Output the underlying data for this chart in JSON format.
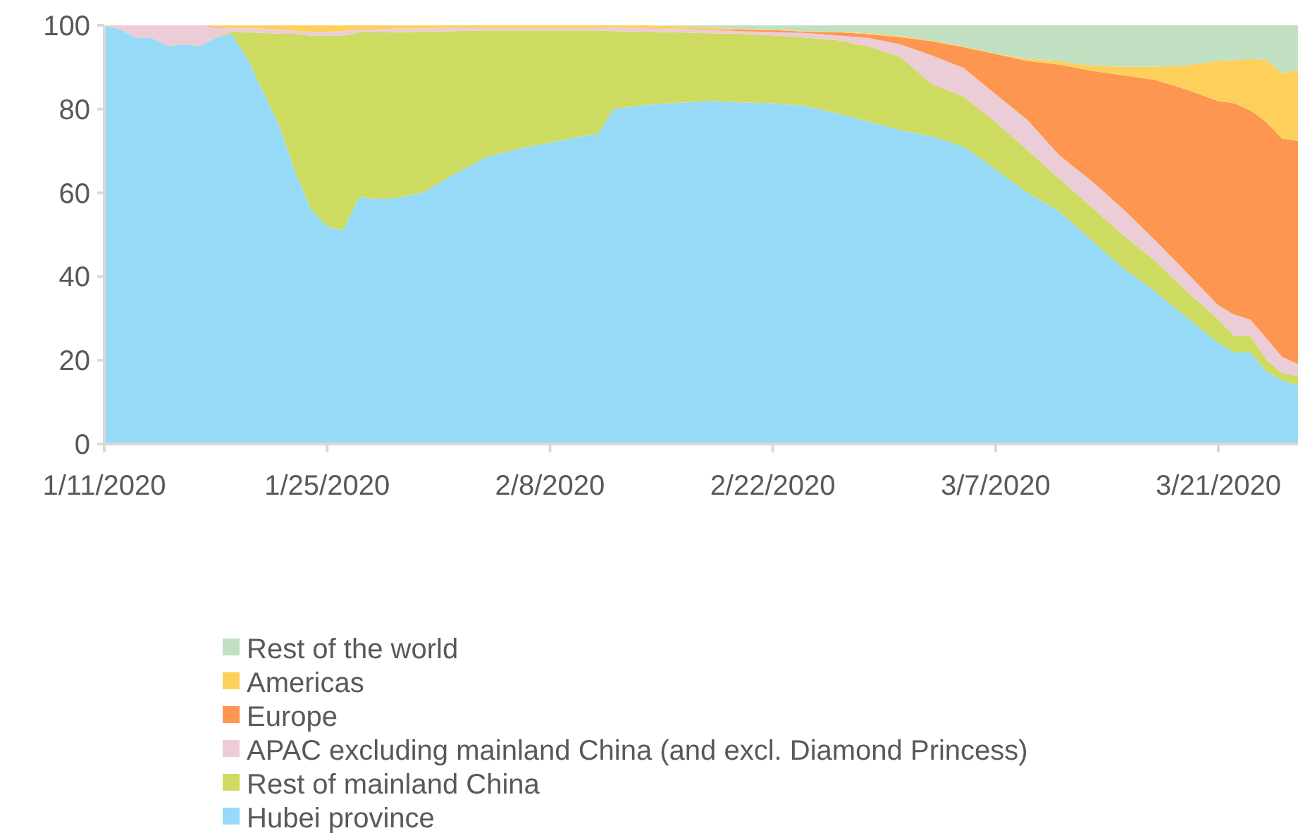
{
  "chart_data": {
    "type": "area",
    "stacked": true,
    "x": [
      "2020-01-11",
      "2020-01-12",
      "2020-01-13",
      "2020-01-14",
      "2020-01-15",
      "2020-01-16",
      "2020-01-17",
      "2020-01-18",
      "2020-01-19",
      "2020-01-20",
      "2020-01-21",
      "2020-01-22",
      "2020-01-23",
      "2020-01-24",
      "2020-01-25",
      "2020-01-26",
      "2020-01-27",
      "2020-01-28",
      "2020-01-29",
      "2020-01-31",
      "2020-02-02",
      "2020-02-04",
      "2020-02-06",
      "2020-02-08",
      "2020-02-10",
      "2020-02-11",
      "2020-02-12",
      "2020-02-14",
      "2020-02-16",
      "2020-02-18",
      "2020-02-20",
      "2020-02-22",
      "2020-02-24",
      "2020-02-26",
      "2020-02-28",
      "2020-03-01",
      "2020-03-03",
      "2020-03-05",
      "2020-03-07",
      "2020-03-09",
      "2020-03-11",
      "2020-03-13",
      "2020-03-15",
      "2020-03-17",
      "2020-03-19",
      "2020-03-21",
      "2020-03-22",
      "2020-03-23",
      "2020-03-24",
      "2020-03-25",
      "2020-03-26"
    ],
    "series": [
      {
        "name": "Hubei province",
        "color": "#97daf7",
        "values": [
          100,
          99,
          97,
          97,
          95,
          95.5,
          95,
          97,
          98,
          92,
          84,
          76,
          65,
          56,
          52,
          51,
          59,
          58.6,
          58.6,
          60,
          64.5,
          68.5,
          70.5,
          72,
          73.5,
          74,
          80,
          81,
          81.5,
          82,
          81.6,
          81.4,
          80.8,
          79,
          77,
          75,
          73.5,
          71,
          65.6,
          60,
          55.6,
          48.8,
          42.1,
          36.5,
          30.3,
          24.1,
          21.9,
          21.9,
          17.4,
          15.2,
          14
        ]
      },
      {
        "name": "Rest of mainland China",
        "color": "#cddc61",
        "values": [
          0,
          0,
          0,
          0,
          0,
          0,
          0,
          0,
          0.5,
          6.3,
          14.2,
          22,
          33,
          41.5,
          45.5,
          46.5,
          39.3,
          39.7,
          39.7,
          38.5,
          34.1,
          30.3,
          28.3,
          26.8,
          25.3,
          24.8,
          18.6,
          17.5,
          16.8,
          16.1,
          16.4,
          16.2,
          16.3,
          17.5,
          18,
          17.5,
          12.5,
          12,
          11.3,
          10.2,
          7.8,
          7.9,
          7.9,
          7.3,
          6.2,
          5.6,
          3.9,
          3.9,
          2.8,
          1.7,
          2.3
        ]
      },
      {
        "name": "APAC excluding mainland China (and excl. Diamond Princess)",
        "color": "#ecccd6",
        "values": [
          0,
          1,
          3,
          3,
          5,
          4.5,
          5,
          2.5,
          0.8,
          1,
          1,
          1,
          0.7,
          1,
          1,
          1.1,
          0.7,
          0.7,
          0.9,
          0.8,
          0.8,
          0.6,
          0.6,
          0.6,
          0.6,
          0.6,
          0.8,
          0.8,
          0.9,
          0.9,
          0.6,
          0.8,
          1.1,
          1.1,
          2,
          3,
          6.8,
          6.8,
          6.7,
          7.2,
          5.6,
          6.2,
          6.2,
          5,
          4.5,
          3.4,
          5.1,
          3.9,
          5.1,
          3.9,
          2.8
        ]
      },
      {
        "name": "Europe",
        "color": "#fd9650",
        "values": [
          0,
          0,
          0,
          0,
          0,
          0,
          0,
          0.2,
          0,
          0,
          0,
          0,
          0,
          0,
          0,
          0,
          0,
          0,
          0,
          0,
          0,
          0,
          0,
          0,
          0,
          0,
          0,
          0.1,
          0,
          0.1,
          0.4,
          0.5,
          0.3,
          0.8,
          0.9,
          1.7,
          3.4,
          5,
          9.6,
          14.1,
          21.6,
          26.3,
          31.9,
          38.2,
          43.7,
          48.8,
          50.5,
          50,
          51.6,
          52.2,
          53.3
        ]
      },
      {
        "name": "Americas",
        "color": "#fdd05b",
        "values": [
          0,
          0,
          0,
          0,
          0,
          0,
          0,
          0.3,
          0.7,
          0.7,
          0.8,
          1,
          1.3,
          1.5,
          1.5,
          1.4,
          1,
          1,
          0.8,
          0.7,
          0.6,
          0.6,
          0.6,
          0.6,
          0.6,
          0.6,
          0.6,
          0.6,
          0.6,
          0.4,
          0.1,
          0.1,
          0.1,
          0.1,
          0.2,
          0.3,
          0.2,
          0.2,
          0.1,
          0.5,
          0.9,
          1.2,
          2,
          3.1,
          5.7,
          9.6,
          10.3,
          12.3,
          14.8,
          15.6,
          16.8
        ]
      },
      {
        "name": "Rest of the world",
        "color": "#c1dfc1",
        "values": [
          0,
          0,
          0,
          0,
          0,
          0,
          0,
          0,
          0,
          0,
          0,
          0,
          0,
          0,
          0,
          0,
          0,
          0,
          0,
          0,
          0,
          0,
          0,
          0,
          0,
          0,
          0,
          0,
          0.2,
          0.5,
          0.9,
          1,
          1.4,
          1.5,
          1.9,
          2.5,
          3.6,
          5,
          6.7,
          8,
          8.5,
          9.6,
          9.9,
          9.9,
          9.6,
          8.5,
          8.3,
          8,
          8.3,
          11.4,
          10.8
        ]
      }
    ],
    "xlim": [
      "2020-01-11",
      "2020-03-26"
    ],
    "xticks": [
      {
        "value": "2020-01-11",
        "label": "1/11/2020"
      },
      {
        "value": "2020-01-25",
        "label": "1/25/2020"
      },
      {
        "value": "2020-02-08",
        "label": "2/8/2020"
      },
      {
        "value": "2020-02-22",
        "label": "2/22/2020"
      },
      {
        "value": "2020-03-07",
        "label": "3/7/2020"
      },
      {
        "value": "2020-03-21",
        "label": "3/21/2020"
      }
    ],
    "ylim": [
      0,
      100
    ],
    "yticks": [
      0,
      20,
      40,
      60,
      80,
      100
    ],
    "grid": false,
    "legend": "bottom"
  }
}
